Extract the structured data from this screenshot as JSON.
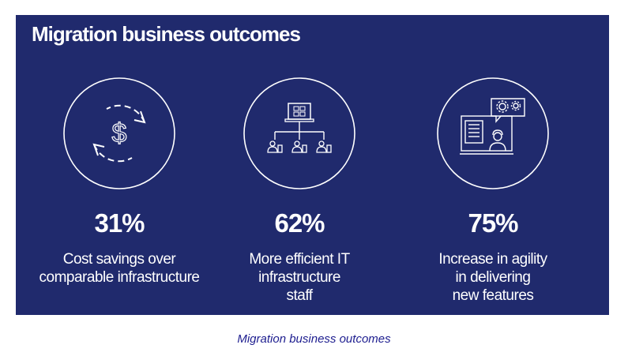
{
  "panel": {
    "title": "Migration business outcomes",
    "background": "#202a6d",
    "text_color": "#ffffff"
  },
  "metrics": [
    {
      "icon": "dollar-cycle-icon",
      "value": "31%",
      "description": [
        "Cost savings over",
        "comparable infrastructure"
      ]
    },
    {
      "icon": "it-staff-network-icon",
      "value": "62%",
      "description": [
        "More efficient IT",
        "infrastructure",
        "staff"
      ]
    },
    {
      "icon": "agile-delivery-icon",
      "value": "75%",
      "description": [
        "Increase in agility",
        "in delivering",
        "new features"
      ]
    }
  ],
  "caption": "Migration business outcomes",
  "caption_color": "#1d1d8f"
}
